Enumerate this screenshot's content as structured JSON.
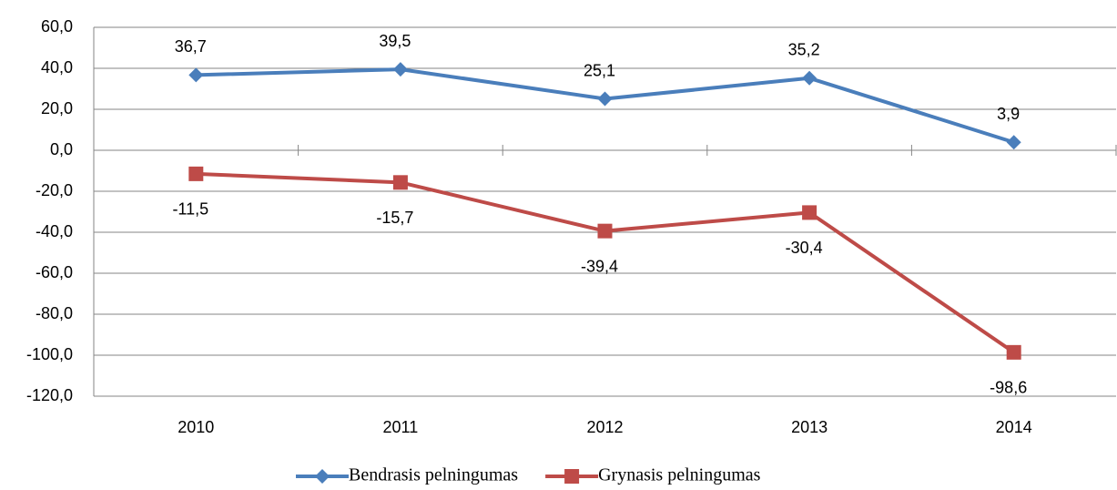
{
  "chart_data": {
    "type": "line",
    "categories": [
      "2010",
      "2011",
      "2012",
      "2013",
      "2014"
    ],
    "series": [
      {
        "name": "Bendrasis pelningumas",
        "color": "#4a7ebb",
        "marker": "diamond",
        "values": [
          36.7,
          39.5,
          25.1,
          35.2,
          3.9
        ],
        "value_labels": [
          "36,7",
          "39,5",
          "25,1",
          "35,2",
          "3,9"
        ]
      },
      {
        "name": "Grynasis pelningumas",
        "color": "#be4b48",
        "marker": "square",
        "values": [
          -11.5,
          -15.7,
          -39.4,
          -30.4,
          -98.6
        ],
        "value_labels": [
          "-11,5",
          "-15,7",
          "-39,4",
          "-30,4",
          "-98,6"
        ]
      }
    ],
    "ylim": [
      -120,
      60
    ],
    "yticks": [
      {
        "value": -120,
        "label": "-120,0"
      },
      {
        "value": -100,
        "label": "-100,0"
      },
      {
        "value": -80,
        "label": "-80,0"
      },
      {
        "value": -60,
        "label": "-60,0"
      },
      {
        "value": -40,
        "label": "-40,0"
      },
      {
        "value": -20,
        "label": "-20,0"
      },
      {
        "value": 0,
        "label": "0,0"
      },
      {
        "value": 20,
        "label": "20,0"
      },
      {
        "value": 40,
        "label": "40,0"
      },
      {
        "value": 60,
        "label": "60,0"
      }
    ],
    "grid": true,
    "legend": "bottom"
  }
}
